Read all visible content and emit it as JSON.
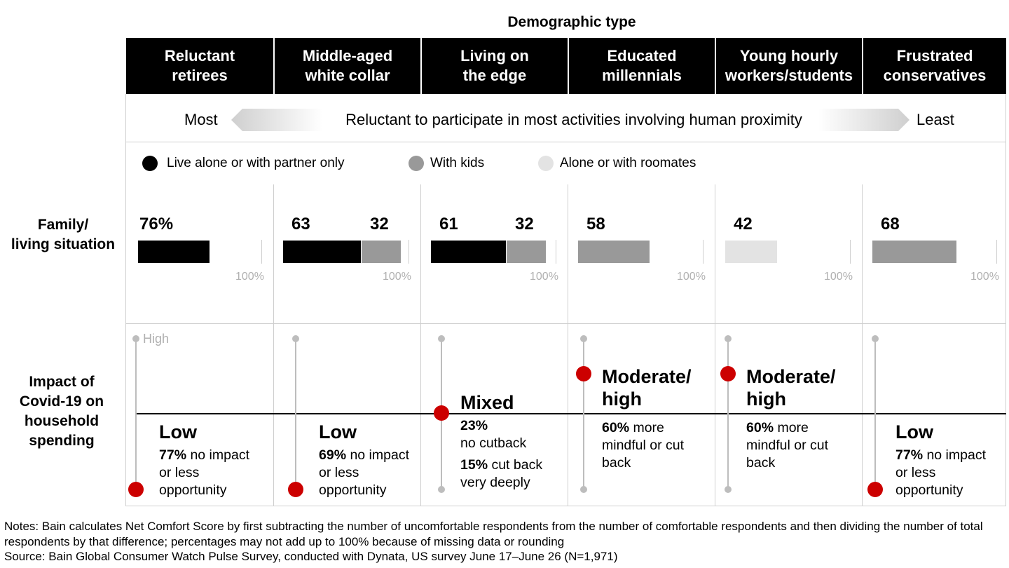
{
  "title": "Demographic type",
  "segments": [
    "Reluctant\nretirees",
    "Middle-aged\nwhite collar",
    "Living on\nthe edge",
    "Educated\nmillennials",
    "Young hourly\nworkers/students",
    "Frustrated\nconservatives"
  ],
  "scale": {
    "left": "Most",
    "center": "Reluctant to participate in most activities involving human proximity",
    "right": "Least"
  },
  "colors": {
    "black": "#000000",
    "gray": "#999999",
    "light": "#e3e3e3",
    "red": "#cc0000"
  },
  "legend": [
    {
      "label": "Live alone or with partner only",
      "color": "#000000"
    },
    {
      "label": "With kids",
      "color": "#999999"
    },
    {
      "label": "Alone or with roomates",
      "color": "#e3e3e3"
    }
  ],
  "family_row_label": "Family/\nliving situation",
  "impact_row_label": "Impact of\nCovid-19 on\nhousehold\nspending",
  "hundred_label": "100%",
  "high_label": "High",
  "chart_data": {
    "type": "bar",
    "orientation": "horizontal",
    "stacked": true,
    "xlim": [
      0,
      100
    ],
    "categories": [
      "Reluctant retirees",
      "Middle-aged white collar",
      "Living on the edge",
      "Educated millennials",
      "Young hourly workers/students",
      "Frustrated conservatives"
    ],
    "series": [
      {
        "name": "Live alone or with partner only",
        "values": [
          76,
          63,
          61,
          null,
          null,
          null
        ]
      },
      {
        "name": "With kids",
        "values": [
          null,
          32,
          32,
          58,
          null,
          68
        ]
      },
      {
        "name": "Alone or with roomates",
        "values": [
          null,
          null,
          null,
          null,
          42,
          null
        ]
      }
    ],
    "value_labels": [
      [
        "76%"
      ],
      [
        "63",
        "32"
      ],
      [
        "61",
        "32"
      ],
      [
        "58"
      ],
      [
        "42"
      ],
      [
        "68"
      ]
    ]
  },
  "impact": [
    {
      "level": "Low",
      "level_code": "low",
      "stat": "77%",
      "text": " no impact or less opportunity"
    },
    {
      "level": "Low",
      "level_code": "low",
      "stat": "69%",
      "text": " no impact or less opportunity"
    },
    {
      "level": "Mixed",
      "level_code": "mixed",
      "stat": "23%",
      "text": "no cutback",
      "stat2": "15%",
      "text2": " cut back very deeply"
    },
    {
      "level": "Moderate/\nhigh",
      "level_code": "moderate-high",
      "stat": "60%",
      "text": " more mindful or cut back"
    },
    {
      "level": "Moderate/\nhigh",
      "level_code": "moderate-high",
      "stat": "60%",
      "text": " more mindful or cut back"
    },
    {
      "level": "Low",
      "level_code": "low",
      "stat": "77%",
      "text": " no impact or less opportunity"
    }
  ],
  "notes": [
    "Notes: Bain calculates Net Comfort Score by first subtracting the number of uncomfortable respondents from the number of comfortable respondents and then dividing the number of total respondents by that difference; percentages may not add up to 100% because of missing data or rounding",
    "Source: Bain Global Consumer Watch Pulse Survey, conducted with Dynata, US survey June 17–June 26 (N=1,971)"
  ]
}
